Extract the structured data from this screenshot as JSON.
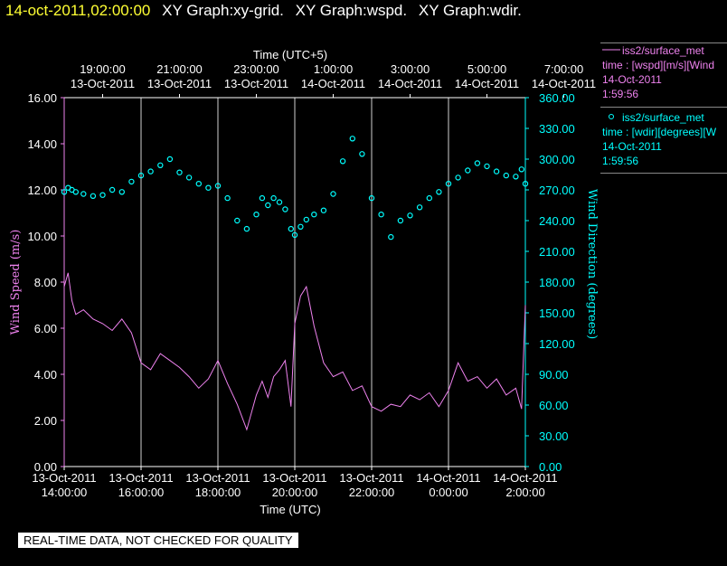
{
  "header": {
    "timestamp": "14-oct-2011,02:00:00",
    "graphs": [
      "XY Graph:xy-grid.",
      "XY Graph:wspd.",
      "XY Graph:wdir."
    ]
  },
  "legend": [
    {
      "series": "iss2/surface_met",
      "line1": "time : [wspd][m/s][Wind",
      "date": "14-Oct-2011",
      "time": "1:59:56",
      "color": "#ee82ee",
      "marker": "line"
    },
    {
      "series": "iss2/surface_met",
      "line1": "time : [wdir][degrees][W",
      "date": "14-Oct-2011",
      "time": "1:59:56",
      "color": "#00ffff",
      "marker": "circle"
    }
  ],
  "notice": "REAL-TIME DATA, NOT CHECKED FOR QUALITY",
  "chart_data": {
    "type": "line",
    "grid": true,
    "x_bottom": {
      "label": "Time (UTC)",
      "ticks": [
        {
          "top": "13-Oct-2011",
          "bottom": "14:00:00"
        },
        {
          "top": "13-Oct-2011",
          "bottom": "16:00:00"
        },
        {
          "top": "13-Oct-2011",
          "bottom": "18:00:00"
        },
        {
          "top": "13-Oct-2011",
          "bottom": "20:00:00"
        },
        {
          "top": "13-Oct-2011",
          "bottom": "22:00:00"
        },
        {
          "top": "14-Oct-2011",
          "bottom": "0:00:00"
        },
        {
          "top": "14-Oct-2011",
          "bottom": "2:00:00"
        }
      ],
      "range": [
        "13-Oct-2011 14:00:00",
        "14-Oct-2011 02:00:00"
      ]
    },
    "x_top": {
      "label": "Time (UTC+5)",
      "ticks": [
        {
          "top": "19:00:00",
          "bottom": "13-Oct-2011"
        },
        {
          "top": "21:00:00",
          "bottom": "13-Oct-2011"
        },
        {
          "top": "23:00:00",
          "bottom": "13-Oct-2011"
        },
        {
          "top": "1:00:00",
          "bottom": "14-Oct-2011"
        },
        {
          "top": "3:00:00",
          "bottom": "14-Oct-2011"
        },
        {
          "top": "5:00:00",
          "bottom": "14-Oct-2011"
        },
        {
          "top": "7:00:00",
          "bottom": "14-Oct-2011"
        }
      ]
    },
    "y_left": {
      "label": "Wind Speed (m/s)",
      "range": [
        0,
        16
      ],
      "ticks": [
        "0.00",
        "2.00",
        "4.00",
        "6.00",
        "8.00",
        "10.00",
        "12.00",
        "14.00",
        "16.00"
      ],
      "color": "#ee82ee"
    },
    "y_right": {
      "label": "Wind Direction (degrees)",
      "range": [
        0,
        360
      ],
      "ticks": [
        "0.00",
        "30.00",
        "60.00",
        "90.00",
        "120.00",
        "150.00",
        "180.00",
        "210.00",
        "240.00",
        "270.00",
        "300.00",
        "330.00",
        "360.00"
      ],
      "color": "#00ffff"
    },
    "series": [
      {
        "name": "iss2/surface_met wspd",
        "axis": "left",
        "style": "line",
        "color": "#ee82ee",
        "x_hours": [
          0,
          0.1,
          0.2,
          0.3,
          0.5,
          0.75,
          1,
          1.25,
          1.5,
          1.75,
          2,
          2.25,
          2.5,
          2.75,
          3,
          3.25,
          3.5,
          3.75,
          4,
          4.25,
          4.5,
          4.75,
          5,
          5.15,
          5.3,
          5.45,
          5.6,
          5.75,
          5.9,
          6,
          6.15,
          6.3,
          6.5,
          6.75,
          7,
          7.25,
          7.5,
          7.75,
          8,
          8.25,
          8.5,
          8.75,
          9,
          9.25,
          9.5,
          9.75,
          10,
          10.25,
          10.5,
          10.75,
          11,
          11.25,
          11.5,
          11.75,
          11.9,
          12
        ],
        "values": [
          7.8,
          8.4,
          7.2,
          6.6,
          6.8,
          6.4,
          6.2,
          5.9,
          6.4,
          5.8,
          4.5,
          4.2,
          4.9,
          4.6,
          4.3,
          3.9,
          3.4,
          3.8,
          4.6,
          3.6,
          2.7,
          1.6,
          3.1,
          3.7,
          3.0,
          3.9,
          4.2,
          4.6,
          2.6,
          6.2,
          7.4,
          7.8,
          6.1,
          4.5,
          3.9,
          4.1,
          3.3,
          3.5,
          2.6,
          2.4,
          2.7,
          2.6,
          3.1,
          2.9,
          3.2,
          2.6,
          3.3,
          4.5,
          3.7,
          3.9,
          3.4,
          3.8,
          3.1,
          3.4,
          2.5,
          7.0
        ]
      },
      {
        "name": "iss2/surface_met wdir",
        "axis": "right",
        "style": "circle",
        "color": "#00ffff",
        "x_hours": [
          0,
          0.1,
          0.2,
          0.3,
          0.5,
          0.75,
          1,
          1.25,
          1.5,
          1.75,
          2,
          2.25,
          2.5,
          2.75,
          3,
          3.25,
          3.5,
          3.75,
          4,
          4.25,
          4.5,
          4.75,
          5,
          5.15,
          5.3,
          5.45,
          5.6,
          5.75,
          5.9,
          6,
          6.15,
          6.3,
          6.5,
          6.75,
          7,
          7.25,
          7.5,
          7.75,
          8,
          8.25,
          8.5,
          8.75,
          9,
          9.25,
          9.5,
          9.75,
          10,
          10.25,
          10.5,
          10.75,
          11,
          11.25,
          11.5,
          11.75,
          11.9,
          12
        ],
        "values": [
          268,
          272,
          270,
          268,
          266,
          264,
          265,
          270,
          268,
          278,
          284,
          288,
          294,
          300,
          287,
          282,
          276,
          272,
          274,
          262,
          240,
          232,
          246,
          262,
          255,
          262,
          258,
          251,
          232,
          226,
          234,
          241,
          246,
          250,
          266,
          298,
          320,
          305,
          262,
          246,
          224,
          240,
          245,
          253,
          262,
          268,
          276,
          282,
          289,
          296,
          293,
          288,
          284,
          283,
          290,
          276
        ]
      }
    ]
  }
}
